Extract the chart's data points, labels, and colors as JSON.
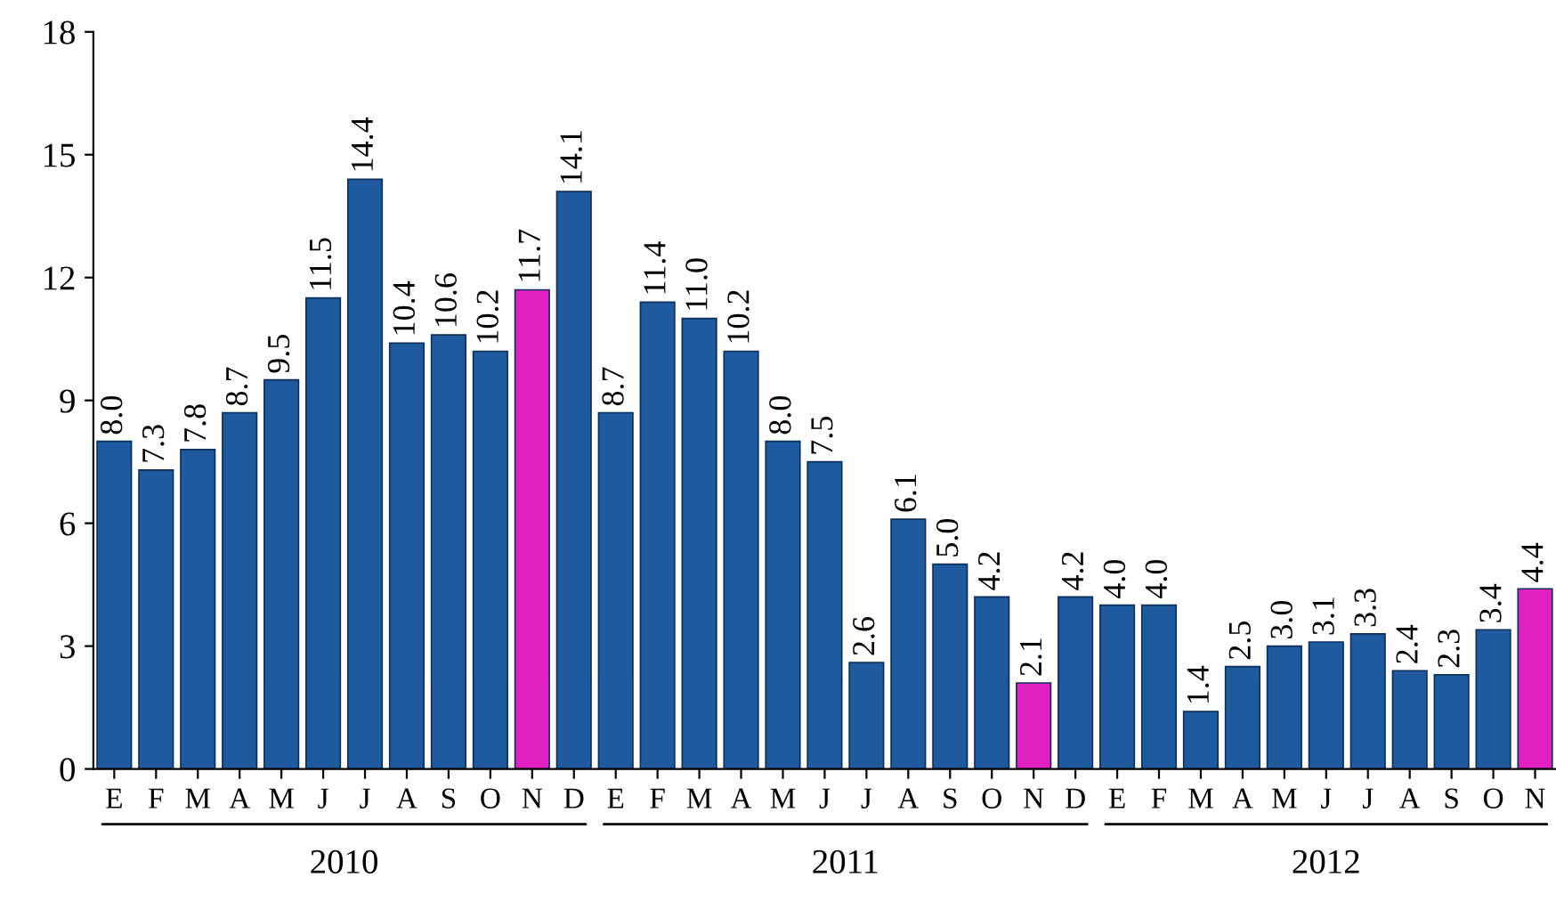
{
  "chart_data": {
    "type": "bar",
    "categories": [
      "E",
      "F",
      "M",
      "A",
      "M",
      "J",
      "J",
      "A",
      "S",
      "O",
      "N",
      "D",
      "E",
      "F",
      "M",
      "A",
      "M",
      "J",
      "J",
      "A",
      "S",
      "O",
      "N",
      "D",
      "E",
      "F",
      "M",
      "A",
      "M",
      "J",
      "J",
      "A",
      "S",
      "O",
      "N"
    ],
    "values": [
      8.0,
      7.3,
      7.8,
      8.7,
      9.5,
      11.5,
      14.4,
      10.4,
      10.6,
      10.2,
      11.7,
      14.1,
      8.7,
      11.4,
      11.0,
      10.2,
      8.0,
      7.5,
      2.6,
      6.1,
      5.0,
      4.2,
      2.1,
      4.2,
      4.0,
      4.0,
      1.4,
      2.5,
      3.0,
      3.1,
      3.3,
      2.4,
      2.3,
      3.4,
      4.4
    ],
    "colors": [
      "#1f5a9e",
      "#1f5a9e",
      "#1f5a9e",
      "#1f5a9e",
      "#1f5a9e",
      "#1f5a9e",
      "#1f5a9e",
      "#1f5a9e",
      "#1f5a9e",
      "#1f5a9e",
      "#e020c0",
      "#1f5a9e",
      "#1f5a9e",
      "#1f5a9e",
      "#1f5a9e",
      "#1f5a9e",
      "#1f5a9e",
      "#1f5a9e",
      "#1f5a9e",
      "#1f5a9e",
      "#1f5a9e",
      "#1f5a9e",
      "#e020c0",
      "#1f5a9e",
      "#1f5a9e",
      "#1f5a9e",
      "#1f5a9e",
      "#1f5a9e",
      "#1f5a9e",
      "#1f5a9e",
      "#1f5a9e",
      "#1f5a9e",
      "#1f5a9e",
      "#1f5a9e",
      "#e020c0"
    ],
    "value_labels": [
      "8.0",
      "7.3",
      "7.8",
      "8.7",
      "9.5",
      "11.5",
      "14.4",
      "10.4",
      "10.6",
      "10.2",
      "11.7",
      "14.1",
      "8.7",
      "11.4",
      "11.0",
      "10.2",
      "8.0",
      "7.5",
      "2.6",
      "6.1",
      "5.0",
      "4.2",
      "2.1",
      "4.2",
      "4.0",
      "4.0",
      "1.4",
      "2.5",
      "3.0",
      "3.1",
      "3.3",
      "2.4",
      "2.3",
      "3.4",
      "4.4"
    ],
    "ylim": [
      0,
      18
    ],
    "yticks": [
      0,
      3,
      6,
      9,
      12,
      15,
      18
    ],
    "annotations": [
      "2010",
      "2011",
      "2012"
    ],
    "grid": false,
    "legend": false
  }
}
